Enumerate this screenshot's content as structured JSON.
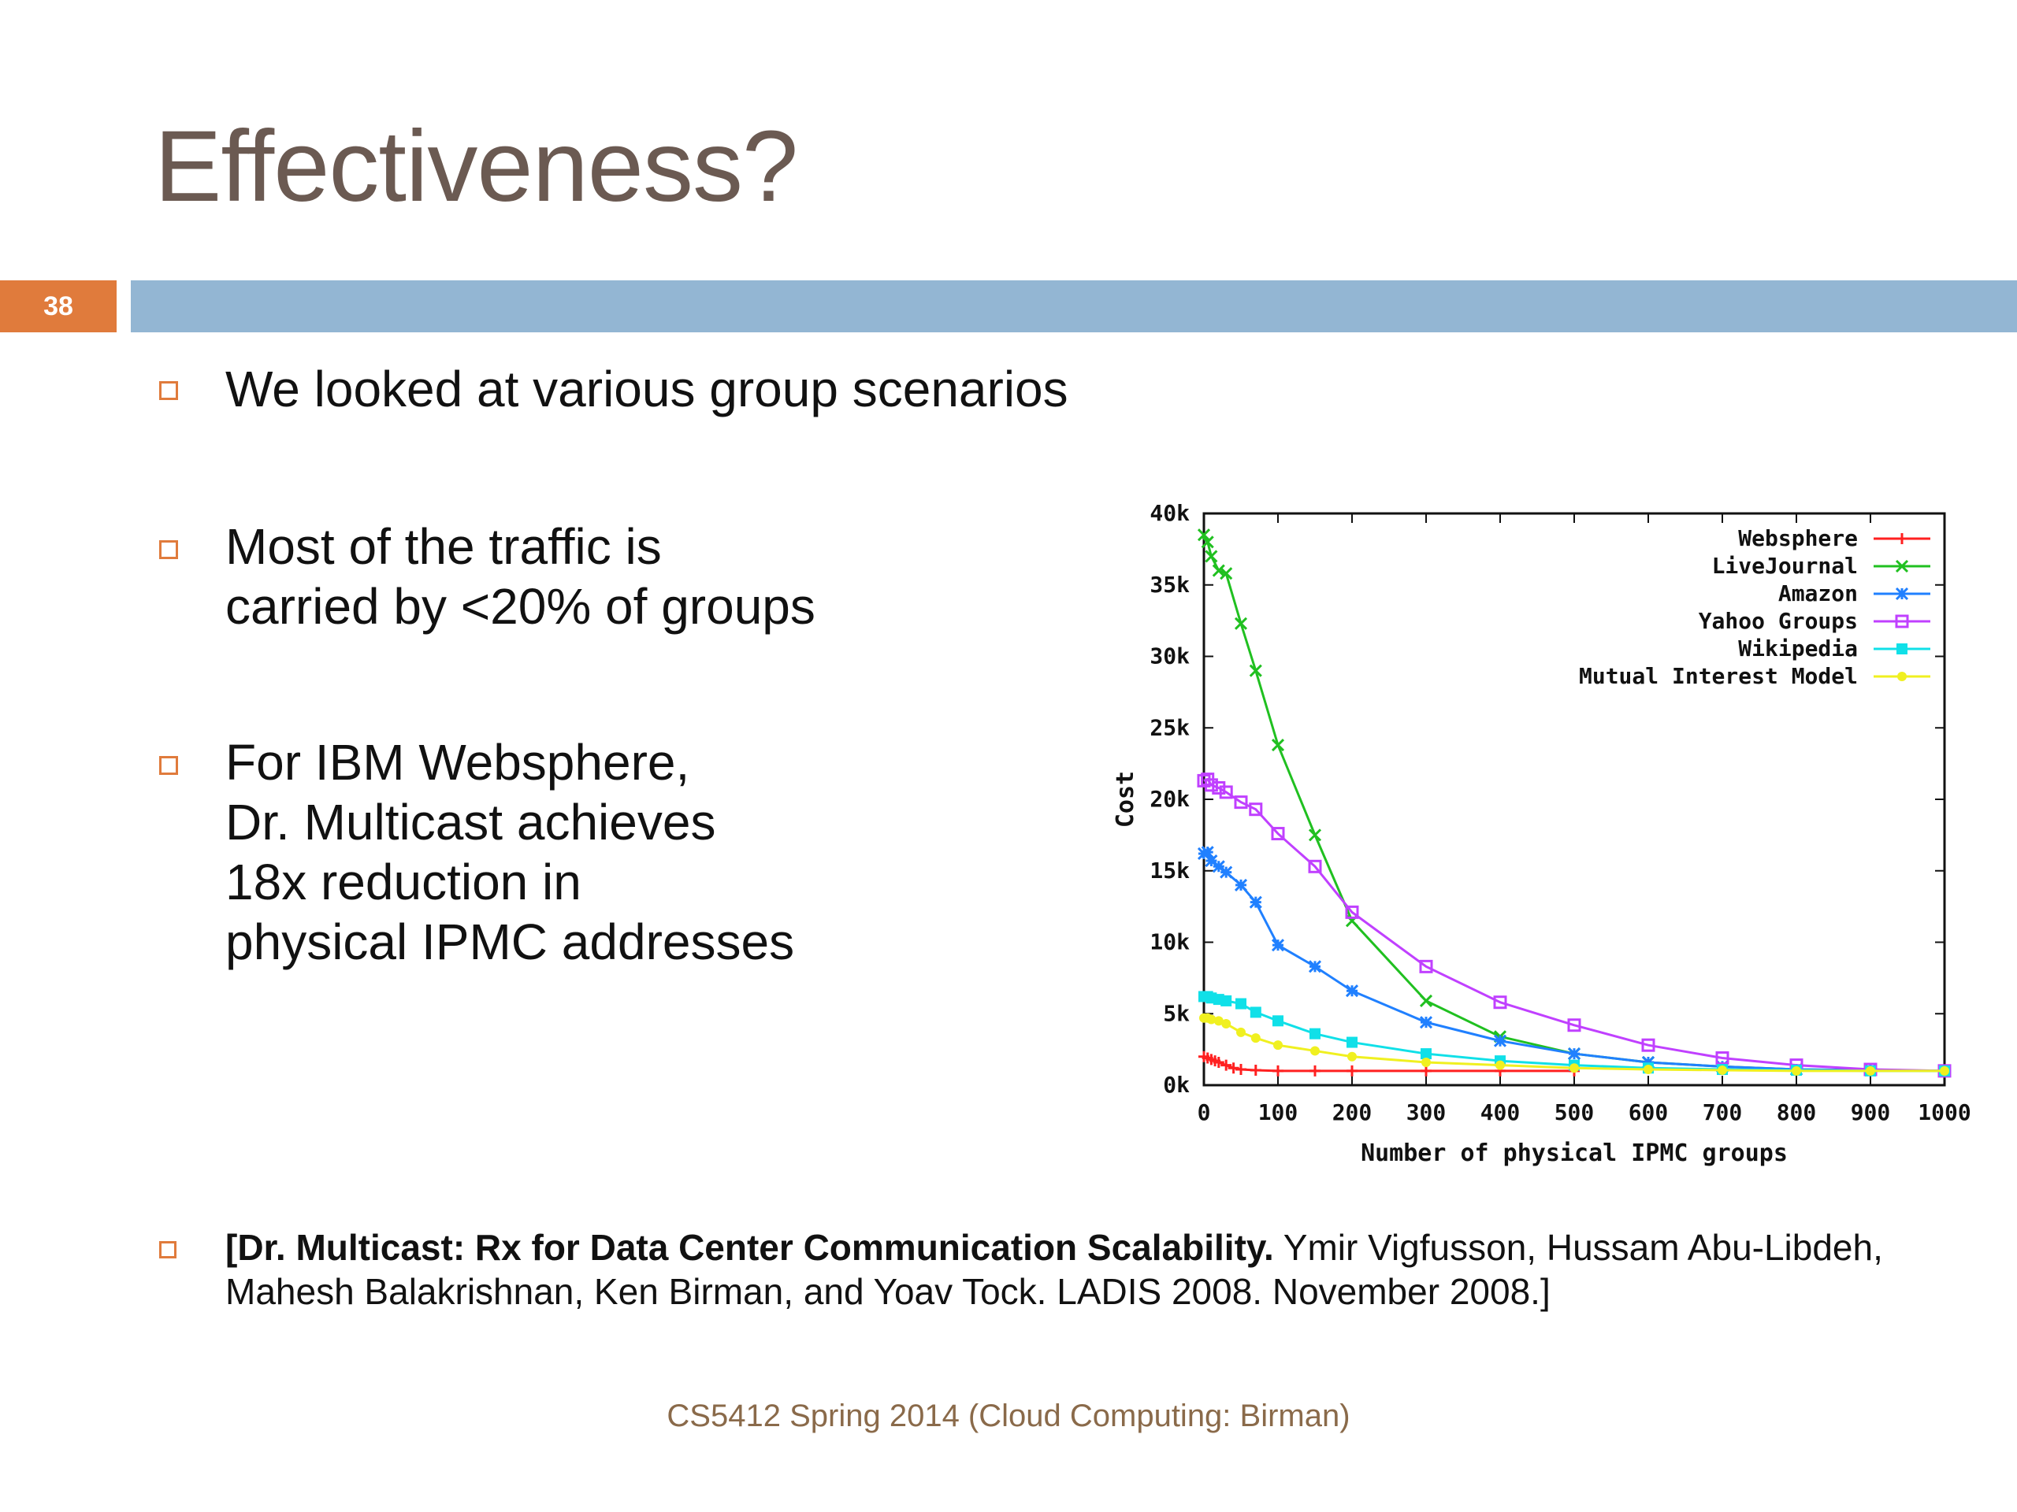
{
  "slide": {
    "title": "Effectiveness?",
    "number": "38",
    "bullets": [
      "We looked at various group scenarios",
      "Most of the traffic is carried by <20% of groups",
      "For IBM Websphere, Dr. Multicast achieves 18x reduction in physical IPMC addresses"
    ],
    "bullet_lines": {
      "b2": [
        "Most of the traffic is",
        "carried by <20% of groups"
      ],
      "b3": [
        "For IBM Websphere,",
        "Dr. Multicast achieves",
        "18x reduction in",
        "physical IPMC addresses"
      ]
    },
    "citation": {
      "bold": "[Dr. Multicast: Rx for Data Center Communication Scalability.",
      "rest": "  Ymir Vigfusson, Hussam Abu-Libdeh, Mahesh Balakrishnan, Ken Birman, and Yoav Tock.  LADIS 2008.  November 2008.]"
    },
    "footer": "CS5412 Spring 2014 (Cloud Computing: Birman)"
  },
  "chart_data": {
    "type": "line",
    "xlabel": "Number of physical IPMC groups",
    "ylabel": "Cost",
    "xlim": [
      0,
      1000
    ],
    "ylim": [
      0,
      40000
    ],
    "xticks": [
      "0",
      "100",
      "200",
      "300",
      "400",
      "500",
      "600",
      "700",
      "800",
      "900",
      "1000"
    ],
    "yticks": [
      "0k",
      "5k",
      "10k",
      "15k",
      "20k",
      "25k",
      "30k",
      "35k",
      "40k"
    ],
    "legend_position": "top-right",
    "grid": false,
    "series": [
      {
        "name": "Websphere",
        "color": "#ff2020",
        "marker": "plus",
        "x": [
          0,
          5,
          10,
          15,
          20,
          30,
          40,
          50,
          70,
          100,
          150,
          200,
          300,
          400,
          500
        ],
        "y": [
          2000,
          1900,
          1800,
          1700,
          1600,
          1400,
          1200,
          1100,
          1050,
          1000,
          1000,
          1000,
          1000,
          1000,
          1000
        ]
      },
      {
        "name": "LiveJournal",
        "color": "#20c020",
        "marker": "x",
        "x": [
          0,
          5,
          10,
          20,
          30,
          50,
          70,
          100,
          150,
          200,
          300,
          400,
          500,
          600,
          700,
          800,
          900,
          1000
        ],
        "y": [
          38500,
          38000,
          37000,
          36000,
          35800,
          32300,
          29000,
          23800,
          17500,
          11500,
          5900,
          3400,
          2200,
          1600,
          1300,
          1100,
          1050,
          1000
        ]
      },
      {
        "name": "Amazon",
        "color": "#2080ff",
        "marker": "star",
        "x": [
          0,
          5,
          10,
          20,
          30,
          50,
          70,
          100,
          150,
          200,
          300,
          400,
          500,
          600,
          700,
          800,
          900,
          1000
        ],
        "y": [
          16200,
          16300,
          15700,
          15300,
          14900,
          14000,
          12800,
          9800,
          8300,
          6600,
          4400,
          3100,
          2200,
          1600,
          1300,
          1100,
          1050,
          1000
        ]
      },
      {
        "name": "Yahoo Groups",
        "color": "#c040ff",
        "marker": "square-open",
        "x": [
          0,
          5,
          10,
          20,
          30,
          50,
          70,
          100,
          150,
          200,
          300,
          400,
          500,
          600,
          700,
          800,
          900,
          1000
        ],
        "y": [
          21300,
          21400,
          21000,
          20800,
          20500,
          19800,
          19300,
          17600,
          15300,
          12100,
          8300,
          5800,
          4200,
          2800,
          1900,
          1400,
          1100,
          1000
        ]
      },
      {
        "name": "Wikipedia",
        "color": "#10e0e8",
        "marker": "square-filled",
        "x": [
          0,
          5,
          10,
          20,
          30,
          50,
          70,
          100,
          150,
          200,
          300,
          400,
          500,
          600,
          700,
          800,
          900,
          1000
        ],
        "y": [
          6200,
          6200,
          6100,
          6000,
          5900,
          5700,
          5100,
          4500,
          3600,
          3000,
          2200,
          1700,
          1400,
          1200,
          1100,
          1050,
          1000,
          1000
        ]
      },
      {
        "name": "Mutual Interest Model",
        "color": "#f0f020",
        "marker": "circle-filled",
        "x": [
          0,
          5,
          10,
          20,
          30,
          50,
          70,
          100,
          150,
          200,
          300,
          400,
          500,
          600,
          700,
          800,
          900,
          1000
        ],
        "y": [
          4700,
          4700,
          4600,
          4500,
          4300,
          3700,
          3300,
          2800,
          2400,
          2000,
          1600,
          1400,
          1200,
          1100,
          1050,
          1000,
          1000,
          1000
        ]
      }
    ]
  }
}
